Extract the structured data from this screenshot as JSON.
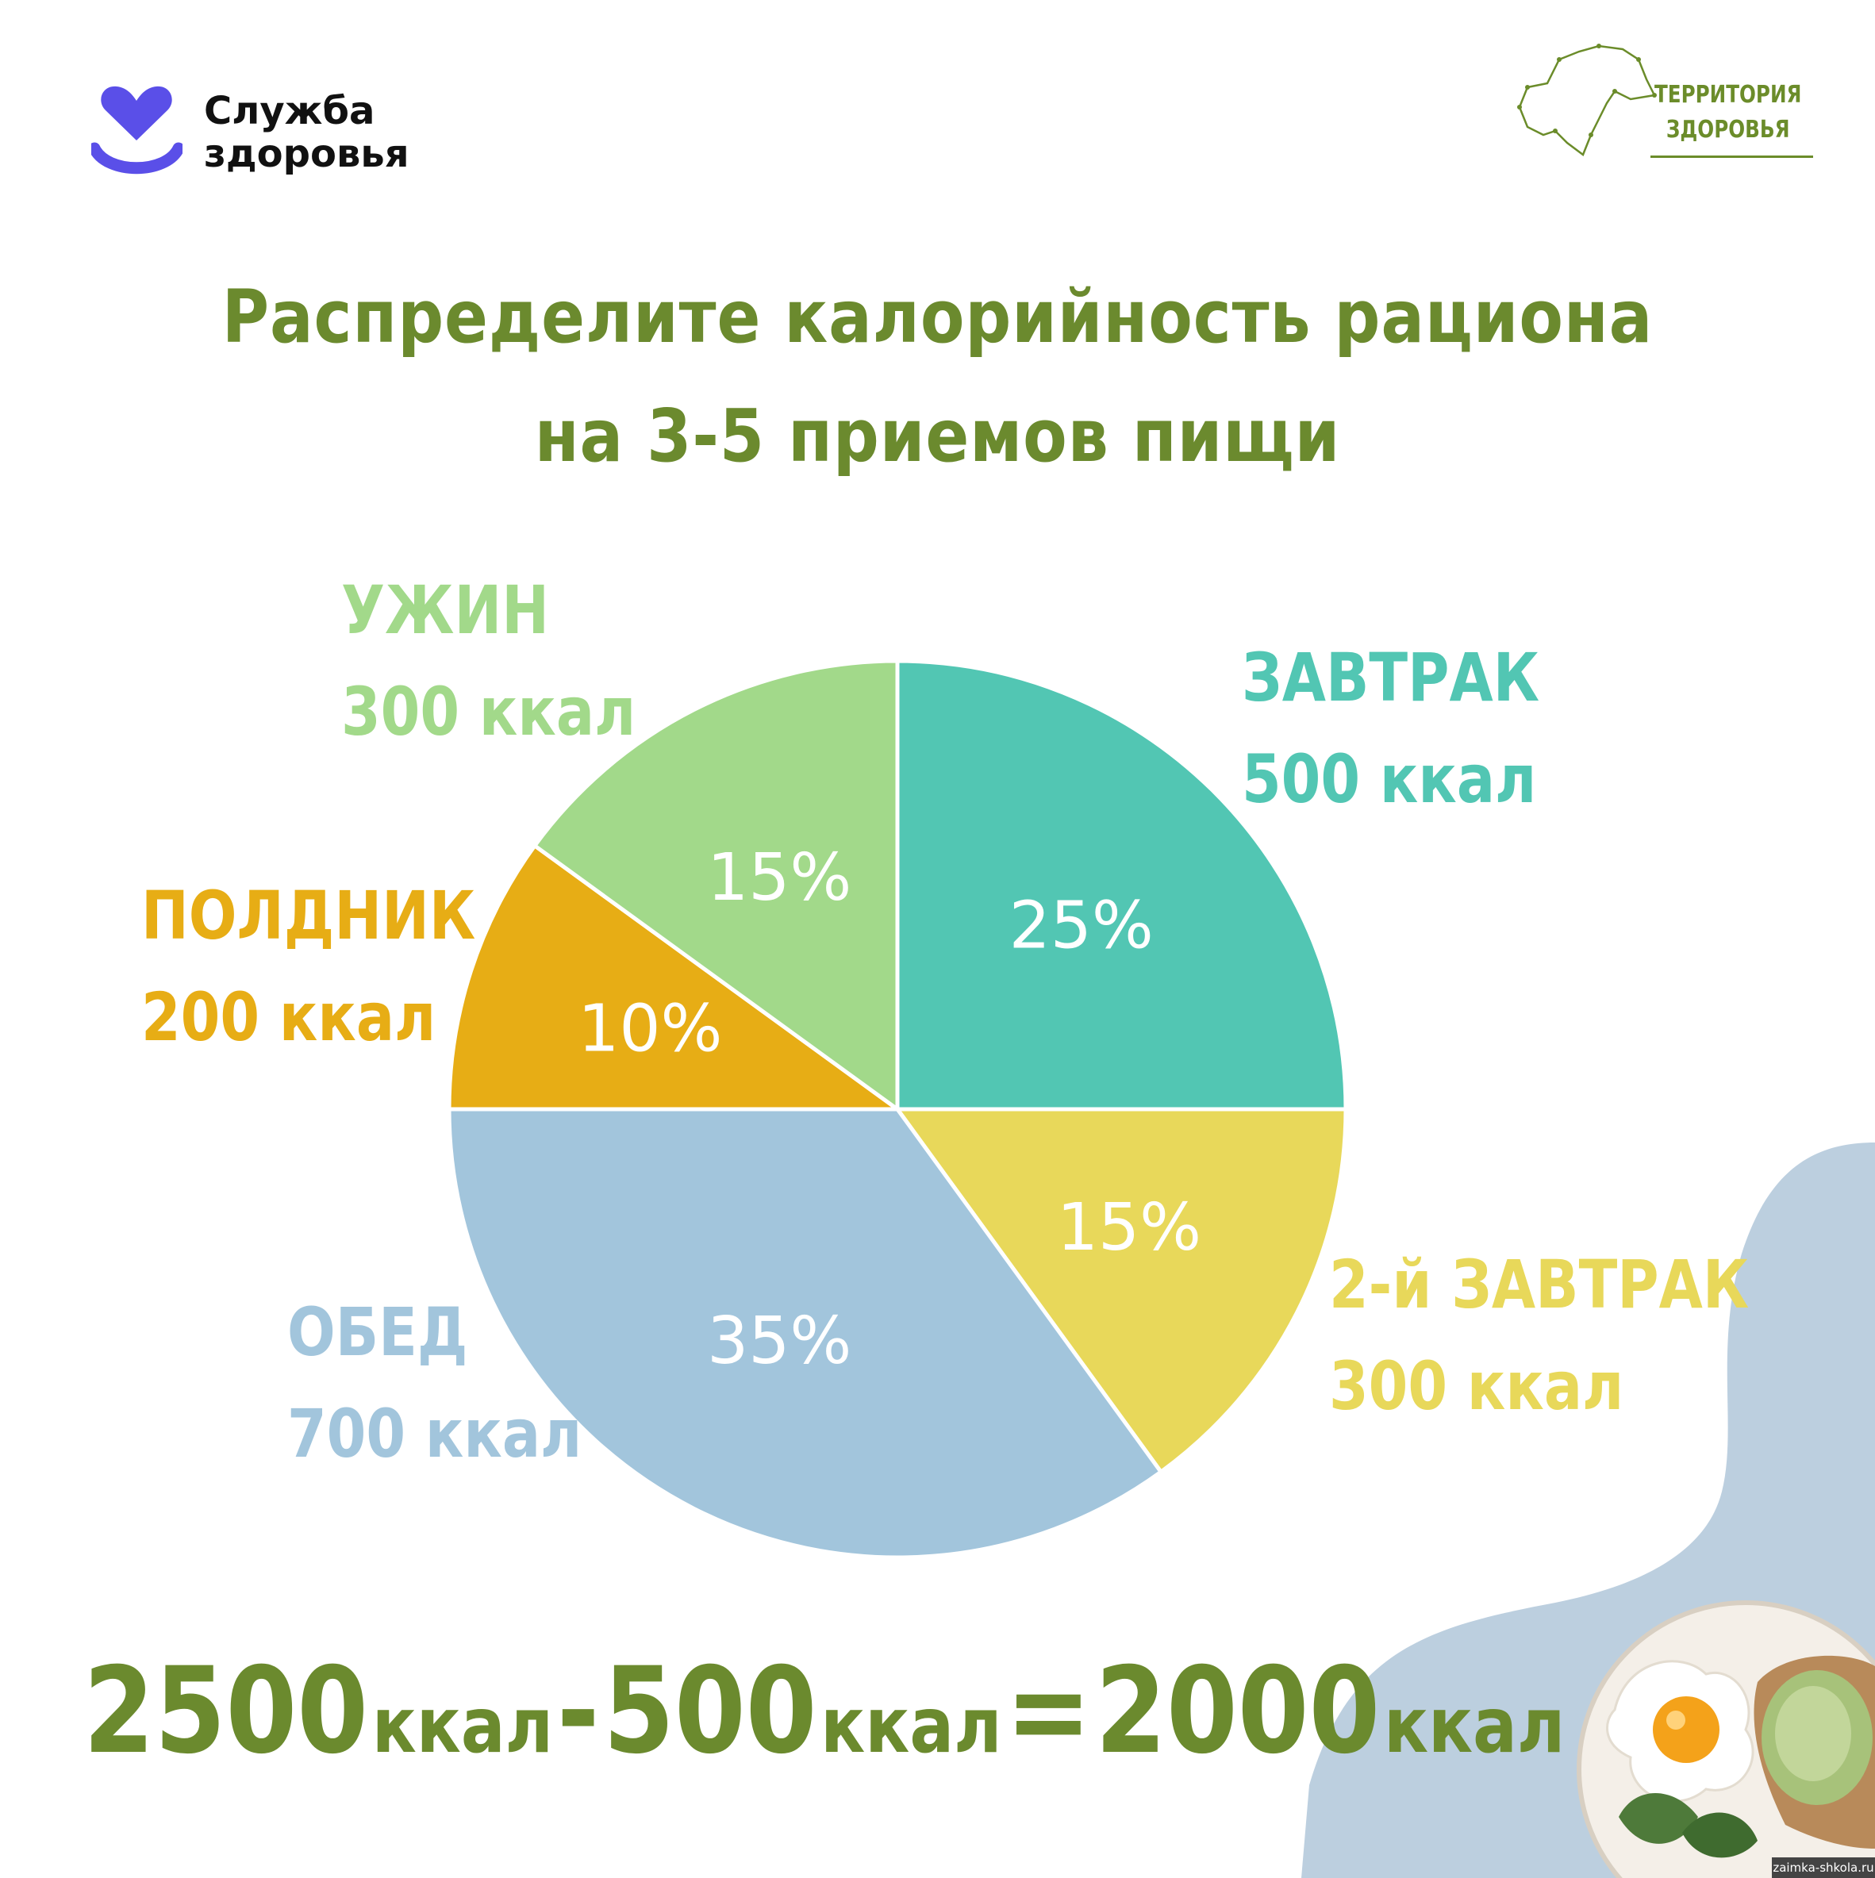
{
  "logo_left": {
    "line1": "Служба",
    "line2": "здоровья"
  },
  "logo_right": {
    "line1": "ТЕРРИТОРИЯ",
    "line2": "ЗДОРОВЬЯ"
  },
  "title": {
    "line1": "Распределите калорийность рациона",
    "line2": "на 3-5 приемов пищи"
  },
  "colors": {
    "breakfast": "#52c6b3",
    "second_breakfast": "#e8d85a",
    "lunch": "#a2c5dc",
    "snack": "#e7ad15",
    "dinner": "#a2d98a",
    "title": "#6b8a2e",
    "blob": "#bccfdf",
    "brand_purple": "#5a4fe8"
  },
  "chart_data": {
    "type": "pie",
    "title": "",
    "start": "top",
    "direction": "clockwise",
    "slices": [
      {
        "key": "breakfast",
        "name": "ЗАВТРАК",
        "kcal": "500 ккал",
        "value": 25,
        "pct_label": "25%"
      },
      {
        "key": "second_breakfast",
        "name": "2-й ЗАВТРАК",
        "kcal": "300 ккал",
        "value": 15,
        "pct_label": "15%"
      },
      {
        "key": "lunch",
        "name": "ОБЕД",
        "kcal": "700 ккал",
        "value": 35,
        "pct_label": "35%"
      },
      {
        "key": "snack",
        "name": "ПОЛДНИК",
        "kcal": "200 ккал",
        "value": 10,
        "pct_label": "10%"
      },
      {
        "key": "dinner",
        "name": "УЖИН",
        "kcal": "300 ккал",
        "value": 15,
        "pct_label": "15%"
      }
    ]
  },
  "formula": {
    "a": "2500",
    "unit": "ккал",
    "minus": "-",
    "b": "500",
    "eq": "=",
    "c": "2000"
  },
  "watermark": "zaimka-shkola.ru"
}
